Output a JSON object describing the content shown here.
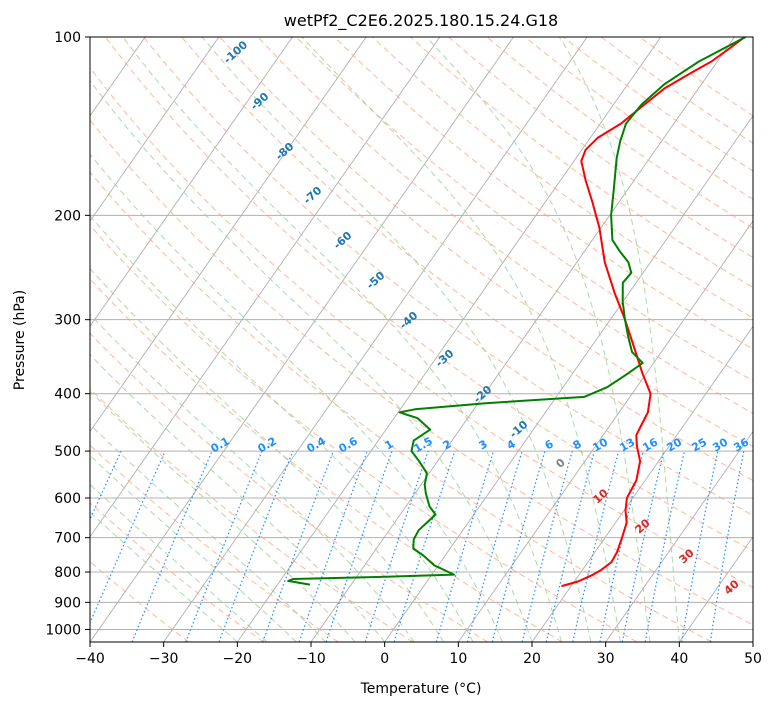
{
  "chart_data": {
    "type": "line",
    "chart_kind": "skew-T log-P diagram",
    "title": "wetPf2_C2E6.2025.180.15.24.G18",
    "xlabel": "Temperature (°C)",
    "ylabel": "Pressure (hPa)",
    "xlim": [
      -40,
      50
    ],
    "ylim": [
      1050,
      100
    ],
    "y_scale": "log",
    "x_ticks": [
      "−40",
      "−30",
      "−20",
      "−10",
      "0",
      "10",
      "20",
      "30",
      "40",
      "50"
    ],
    "y_ticks": [
      "100",
      "200",
      "300",
      "400",
      "500",
      "600",
      "700",
      "800",
      "900",
      "1000"
    ],
    "grid": true,
    "series": [
      {
        "key": "temperature",
        "color": "#ff0000",
        "points": [
          [
            845,
            18.7
          ],
          [
            830,
            20.5
          ],
          [
            810,
            21.8
          ],
          [
            795,
            22.5
          ],
          [
            770,
            23.2
          ],
          [
            740,
            23.0
          ],
          [
            700,
            22.3
          ],
          [
            660,
            21.5
          ],
          [
            630,
            20.2
          ],
          [
            600,
            19.2
          ],
          [
            560,
            18.8
          ],
          [
            520,
            17.5
          ],
          [
            490,
            15.6
          ],
          [
            470,
            14.5
          ],
          [
            450,
            14.2
          ],
          [
            430,
            13.9
          ],
          [
            400,
            12.5
          ],
          [
            370,
            9.5
          ],
          [
            340,
            6.5
          ],
          [
            300,
            2.0
          ],
          [
            270,
            -2.0
          ],
          [
            240,
            -6.2
          ],
          [
            210,
            -10.2
          ],
          [
            190,
            -13.6
          ],
          [
            175,
            -16.5
          ],
          [
            162,
            -19.0
          ],
          [
            155,
            -19.5
          ],
          [
            148,
            -19.0
          ],
          [
            140,
            -17.2
          ],
          [
            130,
            -15.8
          ],
          [
            122,
            -14.6
          ],
          [
            115,
            -12.5
          ],
          [
            110,
            -10.8
          ],
          [
            105,
            -9.7
          ],
          [
            100,
            -8.6
          ]
        ]
      },
      {
        "key": "dewpoint",
        "color": "#008000",
        "points": [
          [
            840,
            -15.6
          ],
          [
            833,
            -17.6
          ],
          [
            828,
            -18.9
          ],
          [
            822,
            -18.4
          ],
          [
            815,
            -6.0
          ],
          [
            808,
            3.0
          ],
          [
            800,
            2.0
          ],
          [
            780,
            -0.5
          ],
          [
            750,
            -3.0
          ],
          [
            730,
            -5.0
          ],
          [
            705,
            -5.8
          ],
          [
            680,
            -6.0
          ],
          [
            660,
            -5.6
          ],
          [
            640,
            -5.2
          ],
          [
            620,
            -6.8
          ],
          [
            590,
            -8.5
          ],
          [
            570,
            -9.5
          ],
          [
            545,
            -10.3
          ],
          [
            520,
            -12.5
          ],
          [
            500,
            -14.5
          ],
          [
            480,
            -15.2
          ],
          [
            460,
            -14.0
          ],
          [
            440,
            -16.8
          ],
          [
            430,
            -19.8
          ],
          [
            425,
            -18.0
          ],
          [
            415,
            -9.0
          ],
          [
            405,
            3.8
          ],
          [
            390,
            6.0
          ],
          [
            370,
            7.5
          ],
          [
            355,
            8.5
          ],
          [
            340,
            6.0
          ],
          [
            320,
            4.0
          ],
          [
            300,
            2.0
          ],
          [
            280,
            0.0
          ],
          [
            260,
            -1.8
          ],
          [
            250,
            -1.6
          ],
          [
            240,
            -3.0
          ],
          [
            230,
            -5.2
          ],
          [
            220,
            -7.3
          ],
          [
            200,
            -9.8
          ],
          [
            180,
            -12.0
          ],
          [
            160,
            -14.5
          ],
          [
            150,
            -15.6
          ],
          [
            140,
            -16.5
          ],
          [
            130,
            -16.2
          ],
          [
            120,
            -15.0
          ],
          [
            110,
            -12.5
          ],
          [
            100,
            -8.5
          ]
        ]
      }
    ],
    "reference_line_colors": {
      "isotherms": "#b0b0b0",
      "dry_adiabats": "#ffa07a",
      "moist_adiabats": "#98d098",
      "mixing_ratio": "#1e90ff",
      "other_curves": "#d2b48c"
    },
    "annotations": {
      "mixing_ratio_labels": [
        "0.1",
        "0.2",
        "0.4",
        "0.6",
        "1",
        "1.5",
        "2",
        "3",
        "4",
        "6",
        "8",
        "10",
        "13",
        "16",
        "20",
        "25",
        "30",
        "36"
      ],
      "blue_temperature_labels": [
        "-100",
        "-90",
        "-80",
        "-70",
        "-60",
        "-50",
        "-40",
        "-30",
        "-20",
        "-10"
      ],
      "gray_label": "0",
      "red_labels": [
        "10",
        "20",
        "30",
        "40"
      ]
    }
  }
}
